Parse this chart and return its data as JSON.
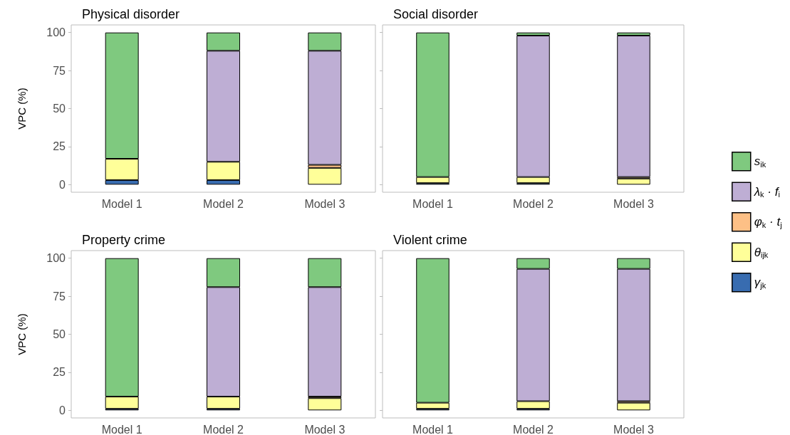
{
  "chart_data": [
    {
      "type": "bar",
      "title": "Physical disorder",
      "ylabel": "VPC (%)",
      "categories": [
        "Model 1",
        "Model 2",
        "Model 3"
      ],
      "stacked": true,
      "ylim": [
        -5,
        105
      ],
      "yticks": [
        0,
        25,
        50,
        75,
        100
      ],
      "grid": false,
      "legend": "right",
      "series": [
        {
          "name": "γ$_{jk}$",
          "color": "#386cb0",
          "values": [
            3,
            3,
            null
          ]
        },
        {
          "name": "θ$_{ijk}$",
          "color": "#ffff99",
          "values": [
            14,
            12,
            11
          ]
        },
        {
          "name": "φ$_{k}$ · t$_{j}$",
          "color": "#fdc086",
          "values": [
            null,
            null,
            2
          ]
        },
        {
          "name": "λ$_{k}$ · f$_{i}$",
          "color": "#beaed4",
          "values": [
            null,
            73,
            75
          ]
        },
        {
          "name": "s$_{ik}$",
          "color": "#7fc97f",
          "values": [
            83,
            12,
            12
          ]
        }
      ]
    },
    {
      "type": "bar",
      "title": "Social disorder",
      "categories": [
        "Model 1",
        "Model 2",
        "Model 3"
      ],
      "stacked": true,
      "ylim": [
        -5,
        105
      ],
      "yticks": [
        0,
        25,
        50,
        75,
        100
      ],
      "grid": false,
      "legend": "right",
      "tick_labels": "x",
      "series": [
        {
          "name": "γ$_{jk}$",
          "color": "#386cb0",
          "values": [
            1,
            1,
            null
          ]
        },
        {
          "name": "θ$_{ijk}$",
          "color": "#ffff99",
          "values": [
            4,
            4,
            4
          ]
        },
        {
          "name": "φ$_{k}$ · t$_{j}$",
          "color": "#fdc086",
          "values": [
            null,
            null,
            1
          ]
        },
        {
          "name": "λ$_{k}$ · f$_{i}$",
          "color": "#beaed4",
          "values": [
            null,
            93,
            93
          ]
        },
        {
          "name": "s$_{ik}$",
          "color": "#7fc97f",
          "values": [
            95,
            2,
            2
          ]
        }
      ]
    },
    {
      "type": "bar",
      "title": "Property crime",
      "ylabel": "VPC (%)",
      "categories": [
        "Model 1",
        "Model 2",
        "Model 3"
      ],
      "stacked": true,
      "ylim": [
        -5,
        105
      ],
      "yticks": [
        0,
        25,
        50,
        75,
        100
      ],
      "grid": false,
      "legend": "right",
      "series": [
        {
          "name": "γ$_{jk}$",
          "color": "#386cb0",
          "values": [
            1,
            1,
            null
          ]
        },
        {
          "name": "θ$_{ijk}$",
          "color": "#ffff99",
          "values": [
            8,
            8,
            8
          ]
        },
        {
          "name": "φ$_{k}$ · t$_{j}$",
          "color": "#fdc086",
          "values": [
            null,
            null,
            1
          ]
        },
        {
          "name": "λ$_{k}$ · f$_{i}$",
          "color": "#beaed4",
          "values": [
            null,
            72,
            72
          ]
        },
        {
          "name": "s$_{ik}$",
          "color": "#7fc97f",
          "values": [
            91,
            19,
            19
          ]
        }
      ]
    },
    {
      "type": "bar",
      "title": "Violent crime",
      "categories": [
        "Model 1",
        "Model 2",
        "Model 3"
      ],
      "stacked": true,
      "ylim": [
        -5,
        105
      ],
      "yticks": [
        0,
        25,
        50,
        75,
        100
      ],
      "grid": false,
      "legend": "right",
      "tick_labels": "x",
      "series": [
        {
          "name": "γ$_{jk}$",
          "color": "#386cb0",
          "values": [
            1,
            1,
            null
          ]
        },
        {
          "name": "θ$_{ijk}$",
          "color": "#ffff99",
          "values": [
            4,
            5,
            5
          ]
        },
        {
          "name": "φ$_{k}$ · t$_{j}$",
          "color": "#fdc086",
          "values": [
            null,
            null,
            1
          ]
        },
        {
          "name": "λ$_{k}$ · f$_{i}$",
          "color": "#beaed4",
          "values": [
            null,
            87,
            87
          ]
        },
        {
          "name": "s$_{ik}$",
          "color": "#7fc97f",
          "values": [
            95,
            7,
            7
          ]
        }
      ]
    }
  ]
}
